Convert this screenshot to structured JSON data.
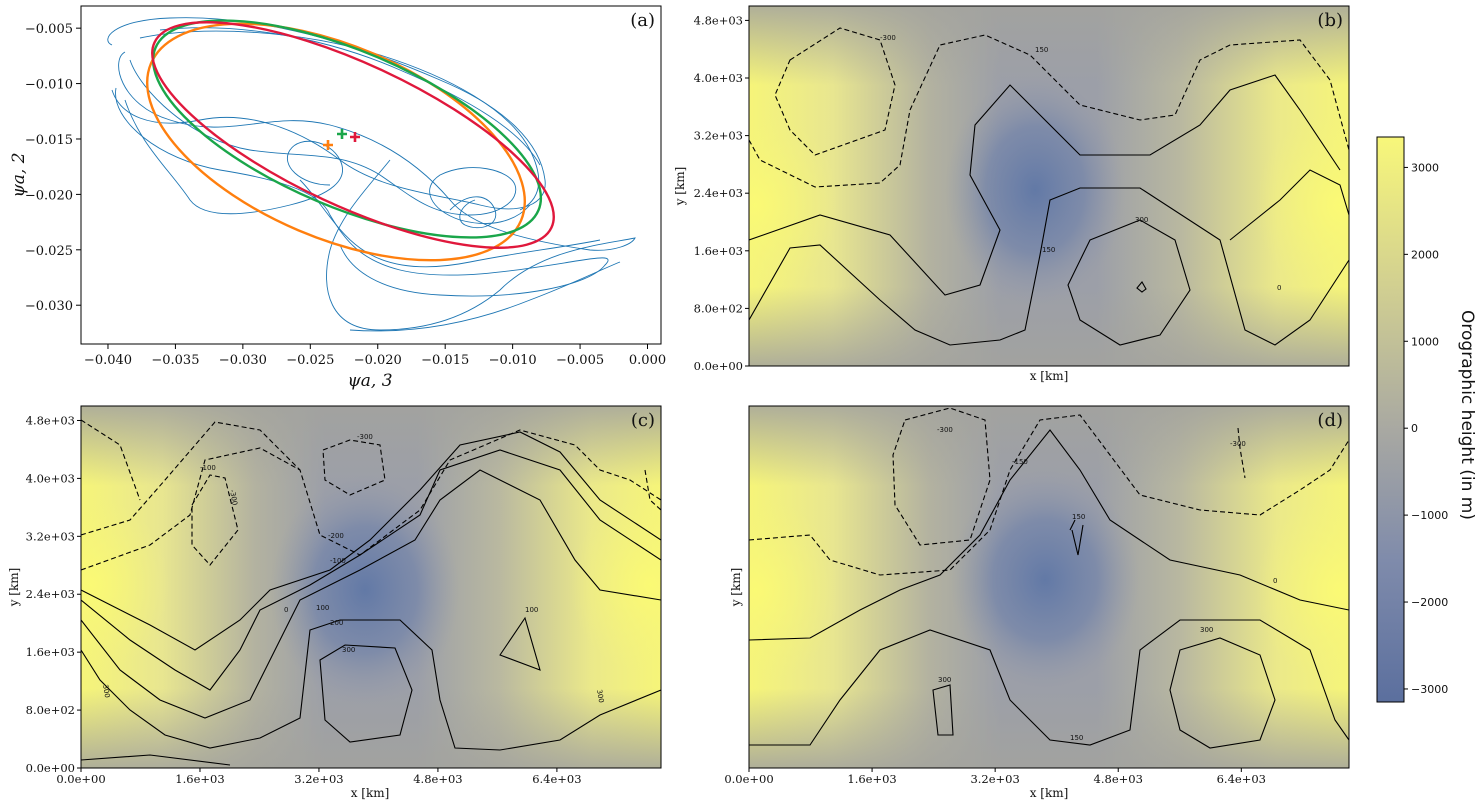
{
  "chart_data": [
    {
      "panel": "(a)",
      "type": "line",
      "xlabel": "ψa, 3",
      "ylabel": "ψa, 2",
      "xlim": [
        -0.042,
        0.001
      ],
      "ylim": [
        -0.0335,
        -0.003
      ],
      "xticks": [
        "−0.040",
        "−0.035",
        "−0.030",
        "−0.025",
        "−0.020",
        "−0.015",
        "−0.010",
        "−0.005",
        "0.000"
      ],
      "yticks": [
        "−0.005",
        "−0.010",
        "−0.015",
        "−0.020",
        "−0.025",
        "−0.030"
      ],
      "series": [
        {
          "color": "#1f77b4",
          "style": "trajectory"
        },
        {
          "color": "#ff7f0e",
          "center": [
            -0.0235,
            -0.0152
          ]
        },
        {
          "color": "#1aa64a",
          "center": [
            -0.0225,
            -0.0143
          ]
        },
        {
          "color": "#e0183c",
          "center": [
            -0.0215,
            -0.0146
          ]
        }
      ]
    },
    {
      "panel": "(b)",
      "type": "heatmap",
      "xlabel": "x [km]",
      "ylabel": "y [km]",
      "yticks": [
        "4.8e+03",
        "4.0e+03",
        "3.2e+03",
        "2.4e+03",
        "1.6e+03",
        "8.0e+02",
        "0.0e+00"
      ],
      "contour_labels": [
        "-300",
        "150",
        "300",
        "150",
        "0"
      ]
    },
    {
      "panel": "(c)",
      "type": "heatmap",
      "xlabel": "x [km]",
      "ylabel": "y [km]",
      "xticks": [
        "0.0e+00",
        "1.6e+03",
        "3.2e+03",
        "4.8e+03",
        "6.4e+03"
      ],
      "yticks": [
        "4.8e+03",
        "4.0e+03",
        "3.2e+03",
        "2.4e+03",
        "1.6e+03",
        "8.0e+02",
        "0.0e+00"
      ],
      "contour_labels": [
        "-300",
        "-100",
        "-200",
        "-100",
        "0",
        "100",
        "200",
        "300",
        "100",
        "-300",
        "300",
        "300"
      ]
    },
    {
      "panel": "(d)",
      "type": "heatmap",
      "xlabel": "x [km]",
      "ylabel": "y [km]",
      "xticks": [
        "0.0e+00",
        "1.6e+03",
        "3.2e+03",
        "4.8e+03",
        "6.4e+03"
      ],
      "contour_labels": [
        "-300",
        "-150",
        "-300",
        "150",
        "0",
        "300",
        "300",
        "150"
      ]
    }
  ],
  "colorbar": {
    "title": "Orographic height (in m)",
    "ticks": [
      "3000",
      "2000",
      "1000",
      "0",
      "−1000",
      "−2000",
      "−3000"
    ],
    "range": [
      -3150,
      3350
    ],
    "color_low": "#5b6f9e",
    "color_mid": "#a8a8a2",
    "color_high": "#f8f77a"
  }
}
